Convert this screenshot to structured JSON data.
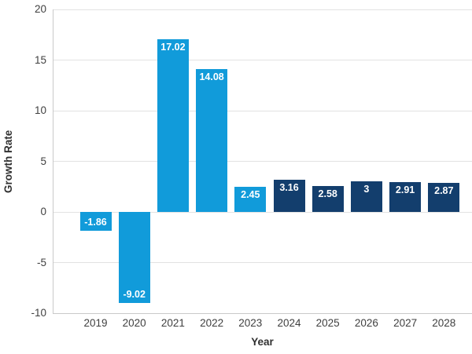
{
  "chart_data": {
    "type": "bar",
    "title": "",
    "xlabel": "Year",
    "ylabel": "Growth Rate",
    "categories": [
      "2019",
      "2020",
      "2021",
      "2022",
      "2023",
      "2024",
      "2025",
      "2026",
      "2027",
      "2028"
    ],
    "values": [
      -1.86,
      -9.02,
      17.02,
      14.08,
      2.45,
      3.16,
      2.58,
      3,
      2.91,
      2.87
    ],
    "value_labels": [
      "-1.86",
      "-9.02",
      "17.02",
      "14.08",
      "2.45",
      "3.16",
      "2.58",
      "3",
      "2.91",
      "2.87"
    ],
    "bar_colors": [
      "#119BDA",
      "#119BDA",
      "#119BDA",
      "#119BDA",
      "#119BDA",
      "#133E6D",
      "#133E6D",
      "#133E6D",
      "#133E6D",
      "#133E6D"
    ],
    "ylim": [
      -10,
      20
    ],
    "yticks": [
      20,
      15,
      10,
      5,
      0,
      -5,
      -10
    ],
    "ytick_labels": [
      "20",
      "15",
      "10",
      "5",
      "0",
      "-5",
      "-10"
    ],
    "grid": "horizontal",
    "legend": "none",
    "colors": {
      "historical_bar": "#119BDA",
      "forecast_bar": "#133E6D",
      "gridline": "#E2E2E2",
      "axis_line": "#C9C9C9",
      "tick_text": "#3F3F3F",
      "axis_title_text": "#303030",
      "value_label_text": "#FFFFFF"
    }
  }
}
